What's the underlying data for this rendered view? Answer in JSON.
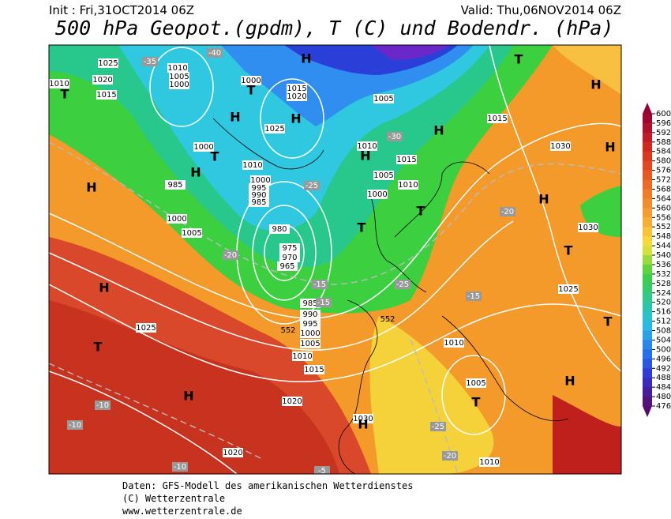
{
  "header": {
    "init": "Init : Fri,31OCT2014 06Z",
    "valid": "Valid: Thu,06NOV2014 06Z",
    "title": "500 hPa Geopot.(gpdm), T (C) und Bodendr. (hPa)"
  },
  "colorbar": {
    "levels": [
      600,
      596,
      592,
      588,
      584,
      580,
      576,
      572,
      568,
      564,
      560,
      556,
      552,
      548,
      544,
      540,
      536,
      532,
      528,
      524,
      520,
      516,
      512,
      508,
      504,
      500,
      496,
      492,
      488,
      484,
      480,
      476
    ]
  },
  "map": {
    "pressure_labels": [
      "1025",
      "1020",
      "1015",
      "1010",
      "1010",
      "1005",
      "1000",
      "1000",
      "1015",
      "1020",
      "1025",
      "1005",
      "1015",
      "1030",
      "1000",
      "1010",
      "1010",
      "1015",
      "1005",
      "1010",
      "1000",
      "1000",
      "995",
      "990",
      "985",
      "985",
      "1000",
      "1005",
      "980",
      "975",
      "970",
      "965",
      "985",
      "990",
      "995",
      "1000",
      "1005",
      "1010",
      "1015",
      "1020",
      "1025",
      "1020",
      "1030",
      "1010",
      "1005",
      "1010",
      "1025",
      "1030"
    ],
    "height_labels": [
      "552",
      "552"
    ],
    "temperature_labels": [
      "-35",
      "-40",
      "-30",
      "-25",
      "-20",
      "-15",
      "-10",
      "-10",
      "-15",
      "-20",
      "-25",
      "-20",
      "-5",
      "-10",
      "-15",
      "-25"
    ],
    "centers": [
      "H",
      "T",
      "H",
      "T",
      "H",
      "H",
      "H",
      "T",
      "H",
      "H",
      "H",
      "T",
      "H",
      "T",
      "T",
      "H",
      "T",
      "H",
      "T",
      "H",
      "H",
      "T",
      "H",
      "T"
    ]
  },
  "footer": [
    "Daten: GFS-Modell des amerikanischen Wetterdienstes",
    "(C) Wetterzentrale",
    "www.wetterzentrale.de"
  ]
}
